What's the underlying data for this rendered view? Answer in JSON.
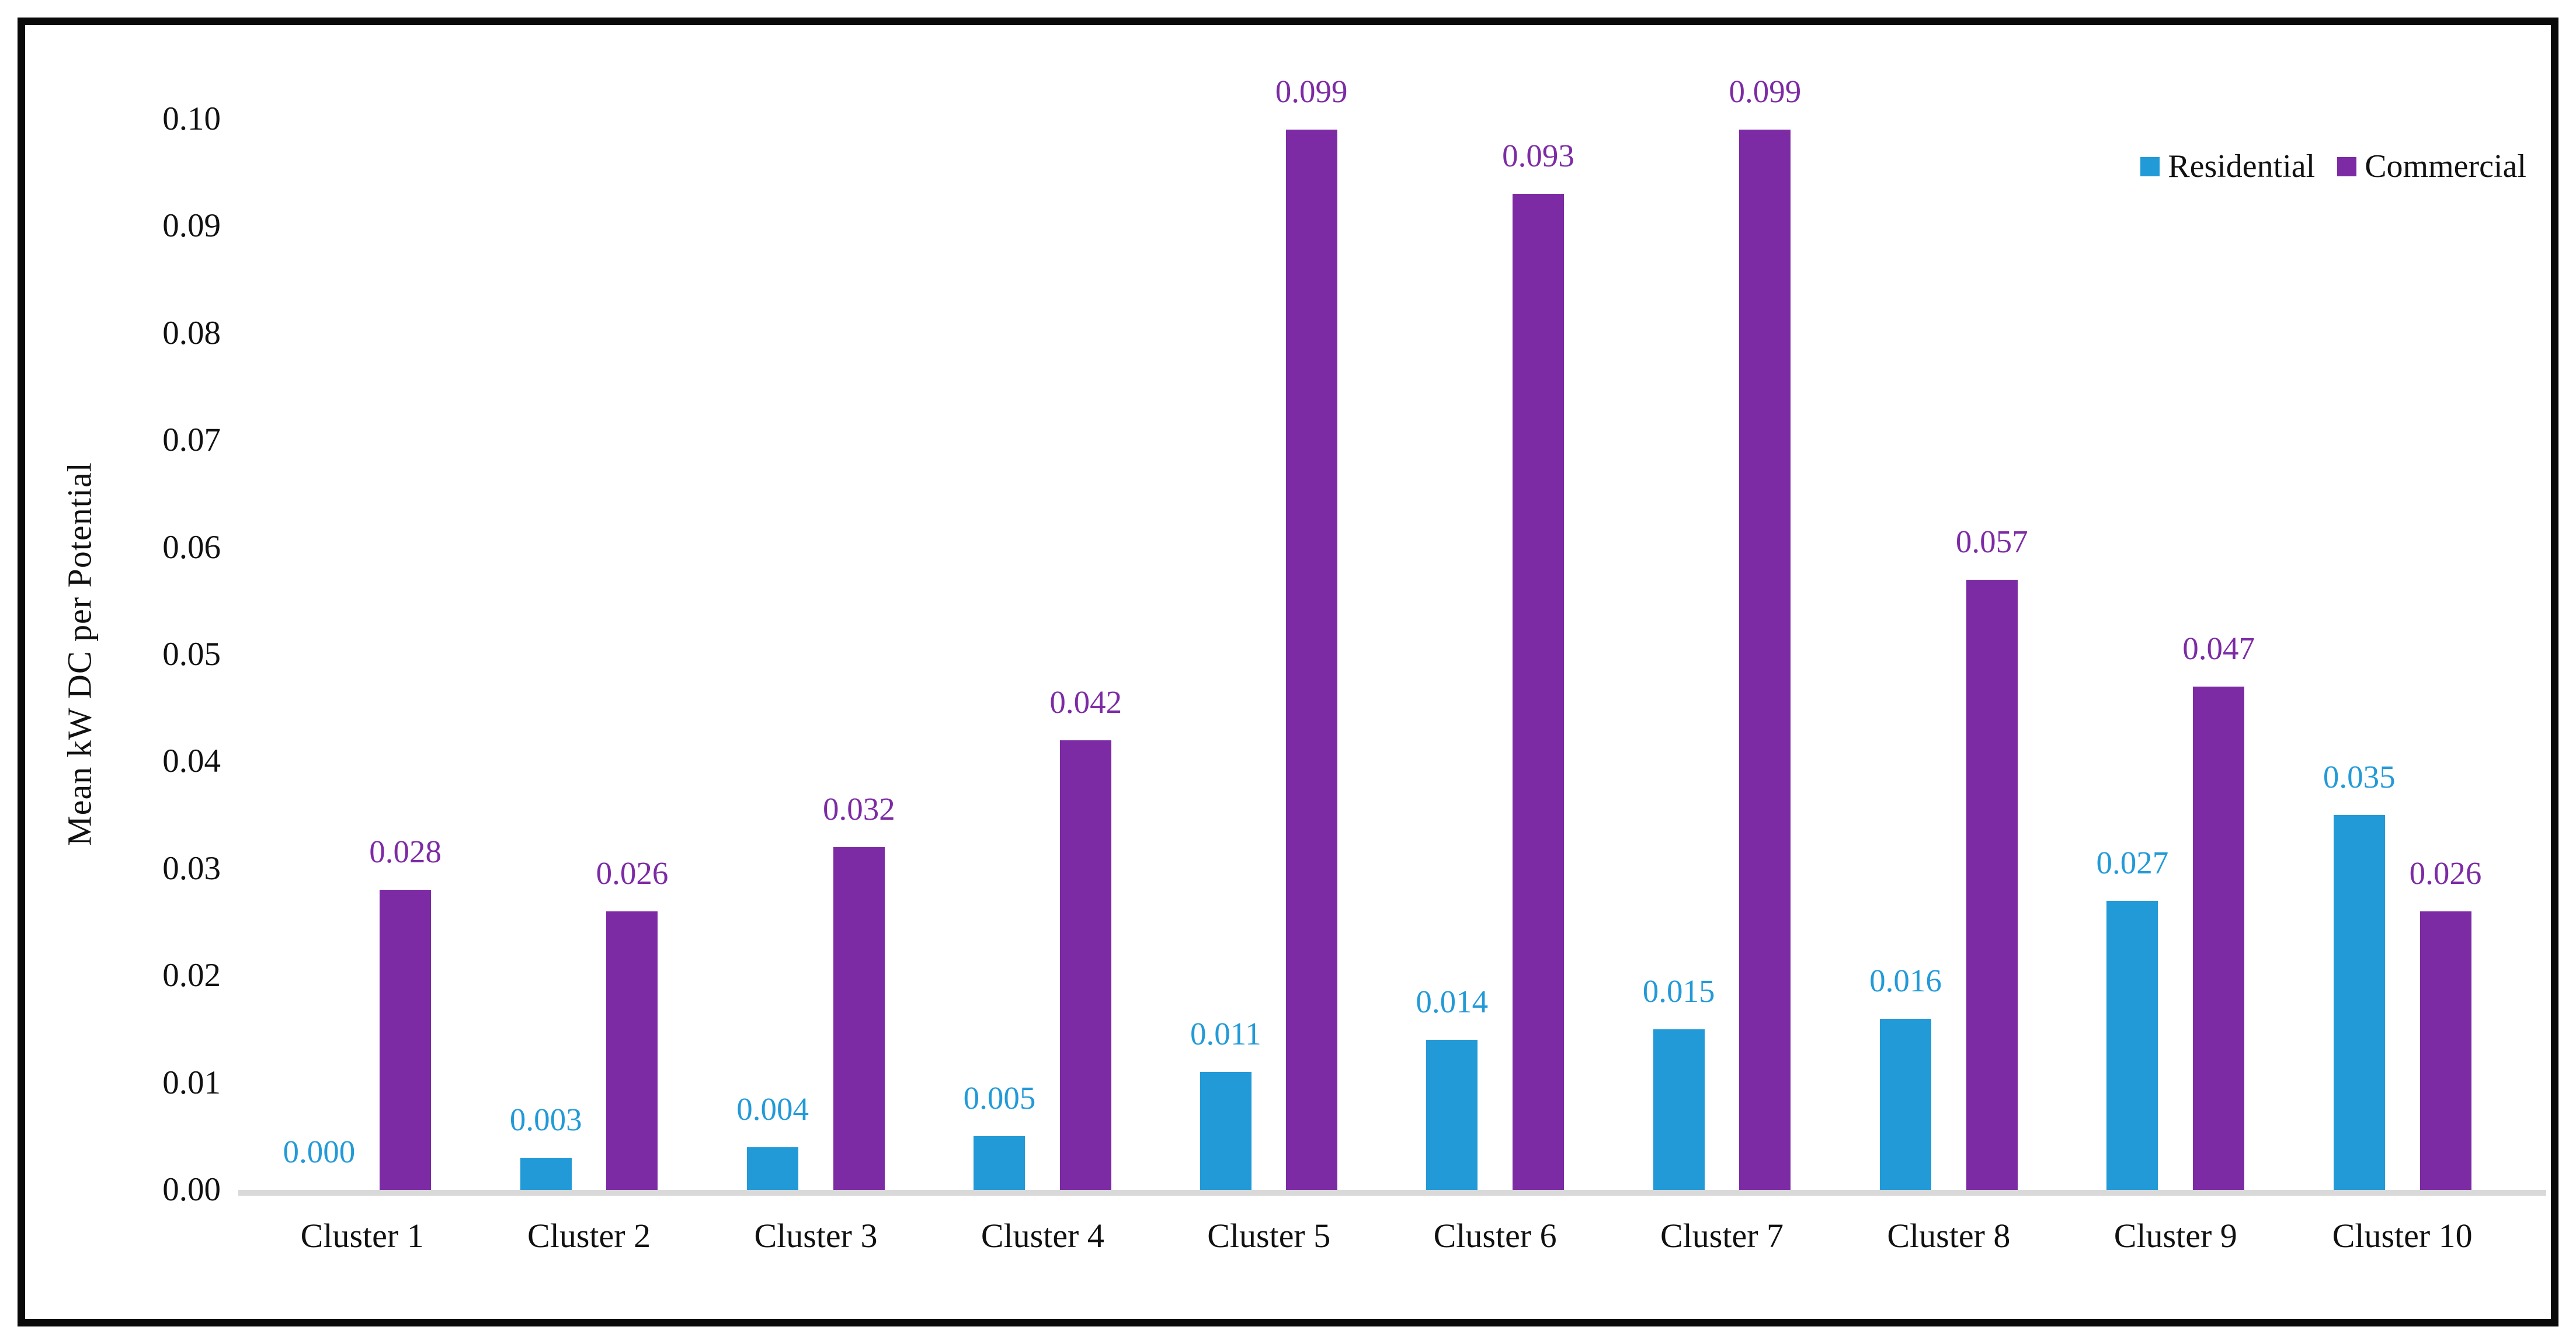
{
  "chart_data": {
    "type": "bar",
    "title": "",
    "ylabel": "Mean kW DC per Potential",
    "xlabel": "",
    "categories": [
      "Cluster 1",
      "Cluster 2",
      "Cluster 3",
      "Cluster 4",
      "Cluster 5",
      "Cluster 6",
      "Cluster 7",
      "Cluster 8",
      "Cluster 9",
      "Cluster 10"
    ],
    "series": [
      {
        "name": "Residential",
        "color": "#229AD8",
        "values": [
          0.0,
          0.003,
          0.004,
          0.005,
          0.011,
          0.014,
          0.015,
          0.016,
          0.027,
          0.035
        ],
        "value_labels": [
          "0.000",
          "0.003",
          "0.004",
          "0.005",
          "0.011",
          "0.014",
          "0.015",
          "0.016",
          "0.027",
          "0.035"
        ]
      },
      {
        "name": "Commercial",
        "color": "#7D2BA5",
        "values": [
          0.028,
          0.026,
          0.032,
          0.042,
          0.099,
          0.093,
          0.099,
          0.057,
          0.047,
          0.026
        ],
        "value_labels": [
          "0.028",
          "0.026",
          "0.032",
          "0.042",
          "0.099",
          "0.093",
          "0.099",
          "0.057",
          "0.047",
          "0.026"
        ]
      }
    ],
    "ylim": [
      0.0,
      0.1
    ],
    "yticks": [
      "0.00",
      "0.01",
      "0.02",
      "0.03",
      "0.04",
      "0.05",
      "0.06",
      "0.07",
      "0.08",
      "0.09",
      "0.10"
    ],
    "grid": "off",
    "legend_position": "top-right",
    "axis_line_color": "#D9D9D9",
    "data_labels": "shown above bars, colored per series"
  }
}
